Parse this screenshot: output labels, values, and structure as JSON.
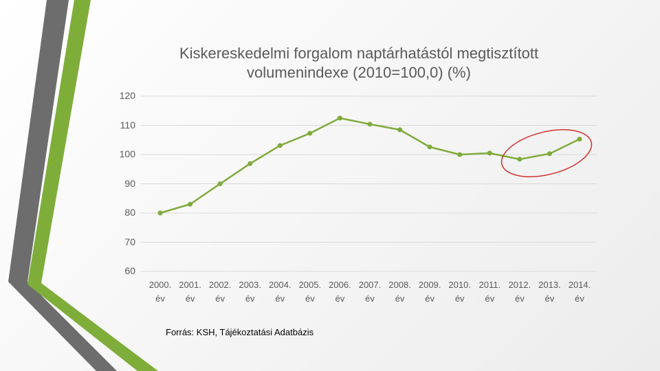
{
  "chart_data": {
    "type": "line",
    "title": "Kiskereskedelmi forgalom naptárhatástól megtisztított volumenindexe (2010=100,0) (%)",
    "categories": [
      "2000. év",
      "2001. év",
      "2002. év",
      "2003. év",
      "2004. év",
      "2005. év",
      "2006. év",
      "2007. év",
      "2008. év",
      "2009. év",
      "2010. év",
      "2011. év",
      "2012. év",
      "2013. év",
      "2014. év"
    ],
    "series": [
      {
        "name": "Volumenindex",
        "color": "#7faa3a",
        "values": [
          80.0,
          83.0,
          90.0,
          96.9,
          103.1,
          107.3,
          112.5,
          110.4,
          108.5,
          102.6,
          100.0,
          100.5,
          98.4,
          100.3,
          105.3
        ]
      }
    ],
    "ylim": [
      60,
      120
    ],
    "yticks": [
      60,
      70,
      80,
      90,
      100,
      110,
      120
    ],
    "grid": true,
    "source": "Forrás: KSH, Tájékoztatási Adatbázis"
  }
}
